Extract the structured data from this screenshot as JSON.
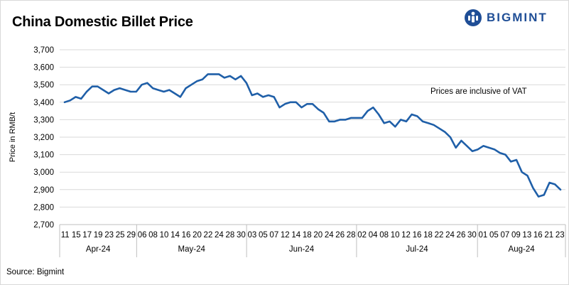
{
  "header": {
    "title": "China Domestic Billet Price",
    "brand": "BIGMINT",
    "brand_color": "#1f4e96"
  },
  "footer": {
    "source": "Source: Bigmint"
  },
  "chart_data": {
    "type": "line",
    "title": "China Domestic Billet Price",
    "ylabel": "Price in RMB/t",
    "xlabel": "",
    "ylim": [
      2700,
      3700
    ],
    "yticks": [
      2700,
      2800,
      2900,
      3000,
      3100,
      3200,
      3300,
      3400,
      3500,
      3600,
      3700
    ],
    "ytick_labels": [
      "2,700",
      "2,800",
      "2,900",
      "3,000",
      "3,100",
      "3,200",
      "3,300",
      "3,400",
      "3,500",
      "3,600",
      "3,700"
    ],
    "grid": "horizontal",
    "annotation": "Prices are inclusive of VAT",
    "line_color": "#1f5fa8",
    "months": [
      {
        "label": "Apr-24",
        "ticks": [
          "11",
          "15",
          "17",
          "19",
          "23",
          "25",
          "29"
        ]
      },
      {
        "label": "May-24",
        "ticks": [
          "06",
          "08",
          "10",
          "14",
          "16",
          "20",
          "22",
          "24",
          "28",
          "30"
        ]
      },
      {
        "label": "Jun-24",
        "ticks": [
          "03",
          "05",
          "07",
          "12",
          "14",
          "18",
          "20",
          "24",
          "26",
          "28"
        ]
      },
      {
        "label": "Jul-24",
        "ticks": [
          "02",
          "04",
          "08",
          "10",
          "12",
          "16",
          "18",
          "22",
          "24",
          "26",
          "30"
        ]
      },
      {
        "label": "Aug-24",
        "ticks": [
          "01",
          "05",
          "07",
          "09",
          "13",
          "16",
          "21",
          "23"
        ]
      }
    ],
    "series": [
      {
        "values": [
          3400,
          3410,
          3430,
          3420,
          3460,
          3490,
          3490,
          3470,
          3450,
          3470,
          3480,
          3470,
          3460,
          3460,
          3500,
          3510,
          3480,
          3470,
          3460,
          3470,
          3450,
          3430,
          3480,
          3500,
          3520,
          3530,
          3560,
          3560,
          3560,
          3540,
          3550,
          3530,
          3550,
          3510,
          3440,
          3450,
          3430,
          3440,
          3430,
          3370,
          3390,
          3400,
          3400,
          3370,
          3390,
          3390,
          3360,
          3340,
          3290,
          3290,
          3300,
          3300,
          3310,
          3310,
          3310,
          3350,
          3370,
          3330,
          3280,
          3290,
          3260,
          3300,
          3290,
          3330,
          3320,
          3290,
          3280,
          3270,
          3250,
          3230,
          3200,
          3140,
          3180,
          3150,
          3120,
          3130,
          3150,
          3140,
          3130,
          3110,
          3100,
          3060,
          3070,
          3000,
          2980,
          2910,
          2860,
          2870,
          2940,
          2930,
          2900
        ]
      }
    ]
  }
}
